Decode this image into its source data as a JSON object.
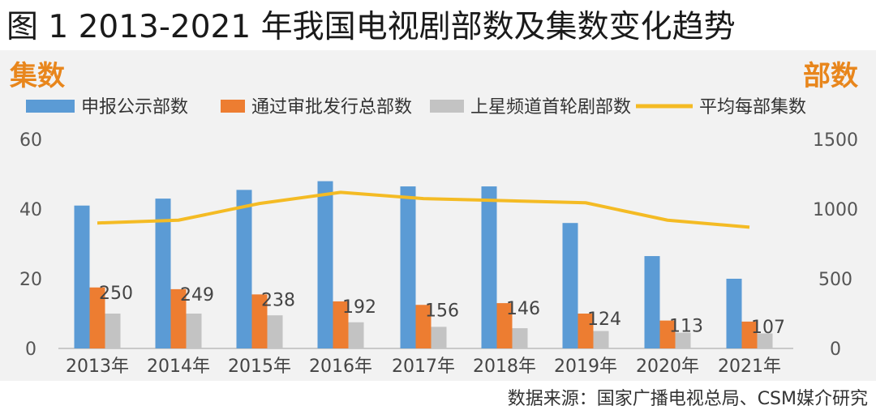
{
  "title": "图 1 2013-2021 年我国电视剧部数及集数变化趋势",
  "left_axis_caption": "集数",
  "right_axis_caption": "部数",
  "source": "数据来源：国家广播电视总局、CSM媒介研究",
  "colors": {
    "blue": "#5b9bd5",
    "orange": "#ed7d31",
    "gray": "#c3c3c3",
    "yellow": "#f4bb24",
    "caption": "#e8861c"
  },
  "chart_data": {
    "type": "bar",
    "categories": [
      "2013年",
      "2014年",
      "2015年",
      "2016年",
      "2017年",
      "2018年",
      "2019年",
      "2020年",
      "2021年"
    ],
    "series": [
      {
        "name": "申报公示部数",
        "type": "bar",
        "axis": "left",
        "color": "#5b9bd5",
        "values": [
          41,
          43,
          45.5,
          48,
          46.5,
          46.5,
          36,
          26.5,
          20
        ]
      },
      {
        "name": "通过审批发行总部数",
        "type": "bar",
        "axis": "left",
        "color": "#ed7d31",
        "values": [
          17.5,
          17,
          15.5,
          13.5,
          12.5,
          13,
          10,
          8,
          7.7
        ]
      },
      {
        "name": "上星频道首轮剧部数",
        "type": "bar",
        "axis": "left",
        "color": "#c3c3c3",
        "values": [
          10,
          10,
          9.5,
          7.5,
          6.2,
          5.8,
          5,
          4.5,
          4.3
        ]
      },
      {
        "name": "平均每部集数",
        "type": "line",
        "axis": "right",
        "color": "#f4bb24",
        "values": [
          900,
          920,
          1040,
          1120,
          1075,
          1060,
          1045,
          920,
          870
        ]
      }
    ],
    "data_labels": [
      "250",
      "249",
      "238",
      "192",
      "156",
      "146",
      "124",
      "113",
      "107"
    ],
    "left_axis": {
      "ticks": [
        "0",
        "20",
        "40",
        "60"
      ],
      "ylim": [
        0,
        60
      ]
    },
    "right_axis": {
      "ticks": [
        "0",
        "500",
        "1000",
        "1500"
      ],
      "ylim": [
        0,
        1500
      ]
    },
    "legend_position": "top",
    "grid": false
  }
}
